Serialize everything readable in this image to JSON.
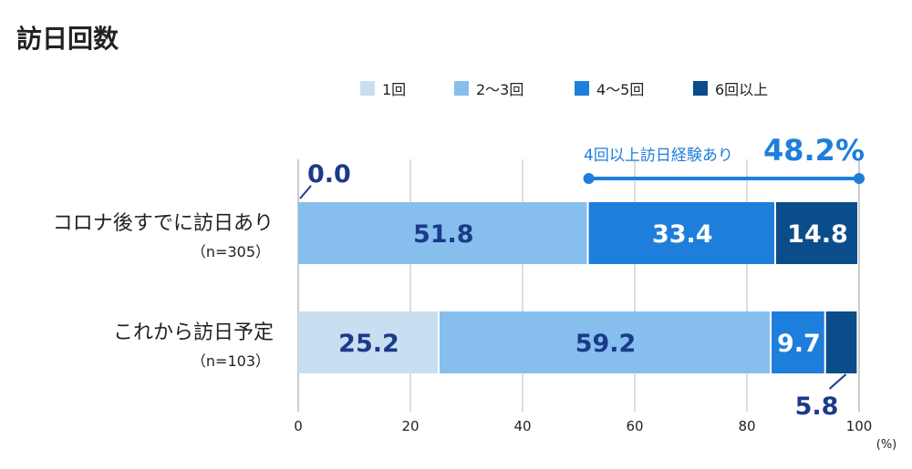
{
  "chart_data": {
    "type": "bar",
    "orientation": "horizontal",
    "stacked": true,
    "title": "訪日回数",
    "categories": [
      {
        "label": "コロナ後すでに訪日あり",
        "sub": "（n=305）"
      },
      {
        "label": "これから訪日予定",
        "sub": "（n=103）"
      }
    ],
    "series": [
      {
        "name": "1回",
        "color": "#c8dff2",
        "values": [
          0.0,
          25.2
        ]
      },
      {
        "name": "2〜3回",
        "color": "#86bfee",
        "values": [
          51.8,
          59.2
        ]
      },
      {
        "name": "4〜5回",
        "color": "#1e7edb",
        "values": [
          33.4,
          9.7
        ]
      },
      {
        "name": "6回以上",
        "color": "#0b4c8a",
        "values": [
          14.8,
          5.8
        ]
      }
    ],
    "data_labels": [
      [
        "0.0",
        "51.8",
        "33.4",
        "14.8"
      ],
      [
        "25.2",
        "59.2",
        "9.7",
        "5.8"
      ]
    ],
    "xlim": [
      0,
      100
    ],
    "xticks": [
      "0",
      "20",
      "40",
      "60",
      "80",
      "100"
    ],
    "xunit": "(%)",
    "grid": true,
    "legend": "top",
    "annotation": {
      "text": "4回以上訪日経験あり",
      "value": "48.2%",
      "color": "#1e7edb"
    },
    "label_color": "#1c3a8a"
  }
}
